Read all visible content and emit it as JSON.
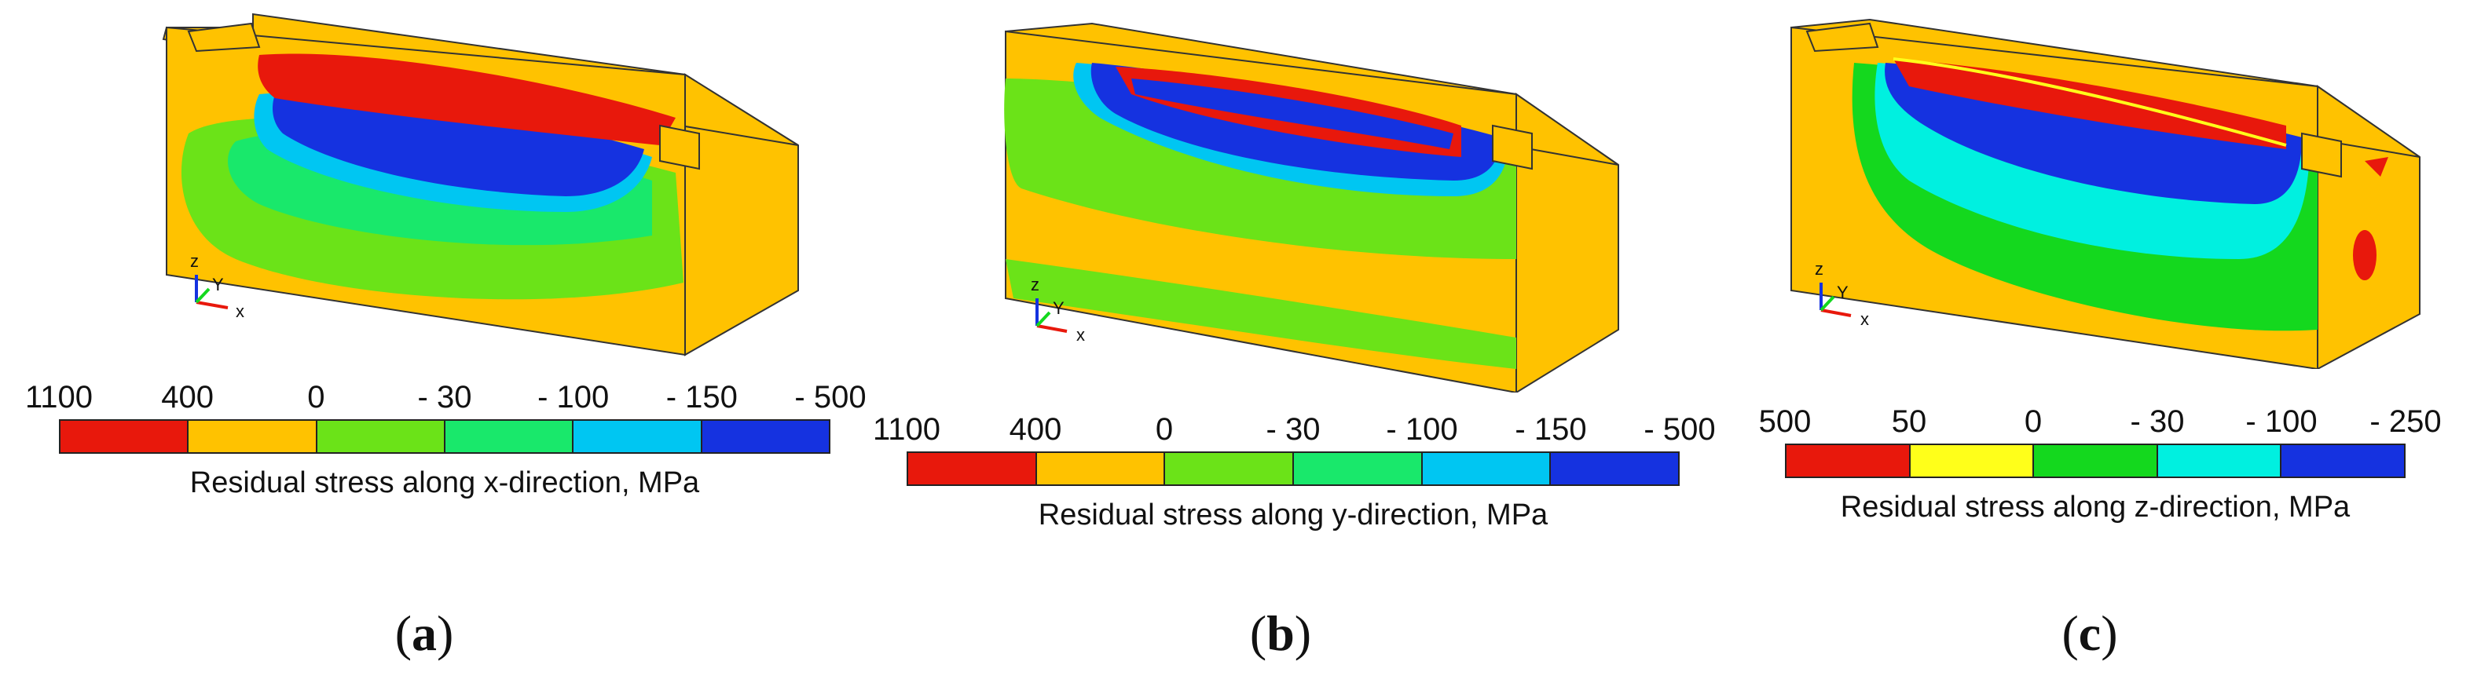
{
  "panels": [
    {
      "id": "a",
      "label_letter": "a",
      "scale_ticks": [
        "1100",
        "400",
        "0",
        "- 30",
        "- 100",
        "- 150",
        "- 500"
      ],
      "scale_colors": [
        "#e8180c",
        "#ffc200",
        "#6be318",
        "#19e86b",
        "#00c6f2",
        "#1532e0"
      ],
      "caption": "Residual stress along x-direction, MPa"
    },
    {
      "id": "b",
      "label_letter": "b",
      "scale_ticks": [
        "1100",
        "400",
        "0",
        "- 30",
        "- 100",
        "- 150",
        "- 500"
      ],
      "scale_colors": [
        "#e8180c",
        "#ffc200",
        "#6be318",
        "#19e86b",
        "#00c6f2",
        "#1532e0"
      ],
      "caption": "Residual stress along y-direction, MPa"
    },
    {
      "id": "c",
      "label_letter": "c",
      "scale_ticks": [
        "500",
        "50",
        "0",
        "- 30",
        "- 100",
        "- 250"
      ],
      "scale_colors": [
        "#e8180c",
        "#ffff1a",
        "#14d81e",
        "#00f0e0",
        "#1532e0"
      ],
      "caption": "Residual stress along z-direction, MPa"
    }
  ],
  "axis_labels": {
    "z": "z",
    "y": "Y",
    "x": "x"
  }
}
